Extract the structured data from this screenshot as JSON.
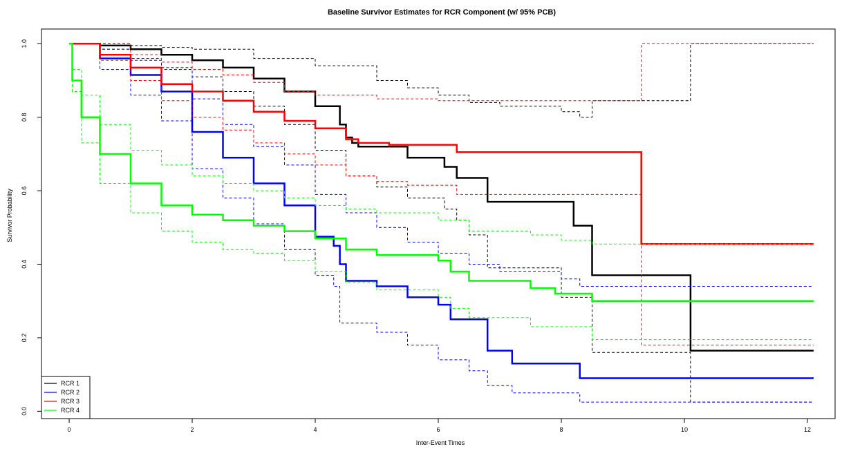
{
  "chart_data": {
    "type": "line",
    "title": "Baseline Survivor Estimates for RCR Component (w/ 95% PCB)",
    "xlabel": "Inter-Event Times",
    "ylabel": "Survivor Probability",
    "xlim": [
      -0.45,
      12.45
    ],
    "ylim": [
      -0.02,
      1.04
    ],
    "xticks": [
      "0",
      "2",
      "4",
      "6",
      "8",
      "10",
      "12"
    ],
    "yticks": [
      "0.0",
      "0.2",
      "0.4",
      "0.6",
      "0.8",
      "1.0"
    ],
    "grid": false,
    "legend_position": "bottom-left",
    "series": [
      {
        "name": "RCR 1",
        "color": "#000000",
        "estimate": [
          [
            0,
            1.0
          ],
          [
            0.5,
            0.995
          ],
          [
            1,
            0.985
          ],
          [
            1.5,
            0.97
          ],
          [
            2,
            0.955
          ],
          [
            2.5,
            0.935
          ],
          [
            3,
            0.905
          ],
          [
            3.5,
            0.87
          ],
          [
            4,
            0.83
          ],
          [
            4.4,
            0.78
          ],
          [
            4.5,
            0.745
          ],
          [
            4.6,
            0.73
          ],
          [
            4.7,
            0.72
          ],
          [
            5.5,
            0.69
          ],
          [
            6.1,
            0.665
          ],
          [
            6.3,
            0.635
          ],
          [
            6.8,
            0.57
          ],
          [
            8.2,
            0.505
          ],
          [
            8.5,
            0.37
          ],
          [
            10.1,
            0.165
          ],
          [
            12.1,
            0.165
          ]
        ],
        "lower": [
          [
            0,
            1.0
          ],
          [
            0.5,
            0.985
          ],
          [
            1,
            0.96
          ],
          [
            1.5,
            0.935
          ],
          [
            2,
            0.91
          ],
          [
            2.5,
            0.87
          ],
          [
            3,
            0.83
          ],
          [
            3.5,
            0.78
          ],
          [
            4,
            0.71
          ],
          [
            4.5,
            0.64
          ],
          [
            5,
            0.61
          ],
          [
            5.5,
            0.58
          ],
          [
            6.1,
            0.55
          ],
          [
            6.3,
            0.52
          ],
          [
            6.5,
            0.48
          ],
          [
            6.8,
            0.39
          ],
          [
            8,
            0.31
          ],
          [
            8.5,
            0.16
          ],
          [
            10.1,
            0.025
          ],
          [
            12.1,
            0.025
          ]
        ],
        "upper": [
          [
            0,
            1.0
          ],
          [
            1,
            0.995
          ],
          [
            1.5,
            0.99
          ],
          [
            2,
            0.985
          ],
          [
            3,
            0.96
          ],
          [
            4,
            0.94
          ],
          [
            5,
            0.9
          ],
          [
            5.5,
            0.88
          ],
          [
            6,
            0.86
          ],
          [
            6.5,
            0.84
          ],
          [
            7,
            0.83
          ],
          [
            8,
            0.815
          ],
          [
            8.3,
            0.8
          ],
          [
            8.5,
            0.845
          ],
          [
            10.1,
            1.0
          ],
          [
            12.1,
            1.0
          ]
        ]
      },
      {
        "name": "RCR 2",
        "color": "#0000ff",
        "estimate": [
          [
            0,
            1.0
          ],
          [
            0.5,
            0.96
          ],
          [
            1,
            0.915
          ],
          [
            1.5,
            0.87
          ],
          [
            2,
            0.76
          ],
          [
            2.5,
            0.69
          ],
          [
            3,
            0.62
          ],
          [
            3.5,
            0.56
          ],
          [
            4,
            0.475
          ],
          [
            4.3,
            0.45
          ],
          [
            4.4,
            0.4
          ],
          [
            4.5,
            0.355
          ],
          [
            5,
            0.34
          ],
          [
            5.5,
            0.31
          ],
          [
            6,
            0.29
          ],
          [
            6.2,
            0.25
          ],
          [
            6.8,
            0.165
          ],
          [
            7.2,
            0.13
          ],
          [
            8.3,
            0.09
          ],
          [
            12.1,
            0.09
          ]
        ],
        "lower": [
          [
            0,
            1.0
          ],
          [
            0.5,
            0.93
          ],
          [
            1,
            0.86
          ],
          [
            1.5,
            0.79
          ],
          [
            2,
            0.66
          ],
          [
            2.5,
            0.58
          ],
          [
            3,
            0.51
          ],
          [
            3.5,
            0.44
          ],
          [
            4,
            0.37
          ],
          [
            4.3,
            0.34
          ],
          [
            4.4,
            0.24
          ],
          [
            5,
            0.215
          ],
          [
            5.5,
            0.18
          ],
          [
            6,
            0.14
          ],
          [
            6.5,
            0.11
          ],
          [
            6.8,
            0.07
          ],
          [
            7.2,
            0.05
          ],
          [
            8.3,
            0.025
          ],
          [
            12.1,
            0.025
          ]
        ],
        "upper": [
          [
            0,
            1.0
          ],
          [
            0.5,
            0.985
          ],
          [
            1,
            0.955
          ],
          [
            1.5,
            0.93
          ],
          [
            2,
            0.85
          ],
          [
            2.5,
            0.78
          ],
          [
            3,
            0.72
          ],
          [
            3.5,
            0.67
          ],
          [
            4,
            0.59
          ],
          [
            4.5,
            0.54
          ],
          [
            5,
            0.5
          ],
          [
            5.5,
            0.46
          ],
          [
            6,
            0.43
          ],
          [
            6.5,
            0.4
          ],
          [
            7,
            0.38
          ],
          [
            8,
            0.36
          ],
          [
            8.3,
            0.34
          ],
          [
            12.1,
            0.34
          ]
        ]
      },
      {
        "name": "RCR 3",
        "color": "#ff0000",
        "estimate": [
          [
            0,
            1.0
          ],
          [
            0.5,
            0.97
          ],
          [
            1,
            0.935
          ],
          [
            1.5,
            0.89
          ],
          [
            2,
            0.87
          ],
          [
            2.5,
            0.845
          ],
          [
            3,
            0.815
          ],
          [
            3.5,
            0.79
          ],
          [
            4,
            0.77
          ],
          [
            4.5,
            0.74
          ],
          [
            4.7,
            0.73
          ],
          [
            5.2,
            0.725
          ],
          [
            6.3,
            0.705
          ],
          [
            9.3,
            0.705
          ],
          [
            9.3,
            0.455
          ],
          [
            12.1,
            0.455
          ]
        ],
        "lower": [
          [
            0,
            1.0
          ],
          [
            0.5,
            0.955
          ],
          [
            1,
            0.9
          ],
          [
            1.5,
            0.845
          ],
          [
            2,
            0.8
          ],
          [
            2.5,
            0.765
          ],
          [
            3,
            0.73
          ],
          [
            3.5,
            0.7
          ],
          [
            4,
            0.67
          ],
          [
            4.5,
            0.64
          ],
          [
            5,
            0.625
          ],
          [
            5.5,
            0.615
          ],
          [
            6.3,
            0.59
          ],
          [
            9.3,
            0.59
          ],
          [
            9.3,
            0.18
          ],
          [
            12.1,
            0.18
          ]
        ],
        "upper": [
          [
            0,
            1.0
          ],
          [
            1,
            0.97
          ],
          [
            1.5,
            0.95
          ],
          [
            2,
            0.93
          ],
          [
            2.5,
            0.915
          ],
          [
            3,
            0.895
          ],
          [
            3.5,
            0.87
          ],
          [
            4,
            0.86
          ],
          [
            5,
            0.85
          ],
          [
            6,
            0.845
          ],
          [
            8,
            0.845
          ],
          [
            9.3,
            0.845
          ],
          [
            9.3,
            1.0
          ],
          [
            12.1,
            1.0
          ]
        ]
      },
      {
        "name": "RCR 4",
        "color": "#00ff00",
        "estimate": [
          [
            0,
            1.0
          ],
          [
            0.05,
            0.9
          ],
          [
            0.2,
            0.8
          ],
          [
            0.5,
            0.7
          ],
          [
            1,
            0.62
          ],
          [
            1.5,
            0.56
          ],
          [
            2,
            0.535
          ],
          [
            2.5,
            0.52
          ],
          [
            3,
            0.505
          ],
          [
            3.5,
            0.49
          ],
          [
            4,
            0.47
          ],
          [
            4.5,
            0.44
          ],
          [
            5,
            0.425
          ],
          [
            6,
            0.41
          ],
          [
            6.2,
            0.38
          ],
          [
            6.5,
            0.355
          ],
          [
            7.5,
            0.335
          ],
          [
            7.9,
            0.32
          ],
          [
            8.5,
            0.3
          ],
          [
            12.1,
            0.3
          ]
        ],
        "lower": [
          [
            0,
            1.0
          ],
          [
            0.05,
            0.87
          ],
          [
            0.2,
            0.73
          ],
          [
            0.5,
            0.62
          ],
          [
            1,
            0.54
          ],
          [
            1.5,
            0.49
          ],
          [
            2,
            0.46
          ],
          [
            2.5,
            0.44
          ],
          [
            3,
            0.43
          ],
          [
            3.5,
            0.41
          ],
          [
            4,
            0.38
          ],
          [
            4.5,
            0.35
          ],
          [
            5,
            0.33
          ],
          [
            6,
            0.31
          ],
          [
            6.2,
            0.28
          ],
          [
            6.5,
            0.255
          ],
          [
            7.5,
            0.23
          ],
          [
            8.5,
            0.195
          ],
          [
            12.1,
            0.195
          ]
        ],
        "upper": [
          [
            0,
            1.0
          ],
          [
            0.05,
            0.93
          ],
          [
            0.2,
            0.86
          ],
          [
            0.5,
            0.78
          ],
          [
            1,
            0.71
          ],
          [
            1.5,
            0.67
          ],
          [
            2,
            0.64
          ],
          [
            2.5,
            0.62
          ],
          [
            3,
            0.6
          ],
          [
            3.5,
            0.58
          ],
          [
            4,
            0.56
          ],
          [
            4.5,
            0.55
          ],
          [
            5,
            0.54
          ],
          [
            6,
            0.52
          ],
          [
            6.5,
            0.49
          ],
          [
            7.5,
            0.48
          ],
          [
            8,
            0.465
          ],
          [
            8.5,
            0.455
          ],
          [
            12.1,
            0.455
          ]
        ]
      }
    ]
  }
}
